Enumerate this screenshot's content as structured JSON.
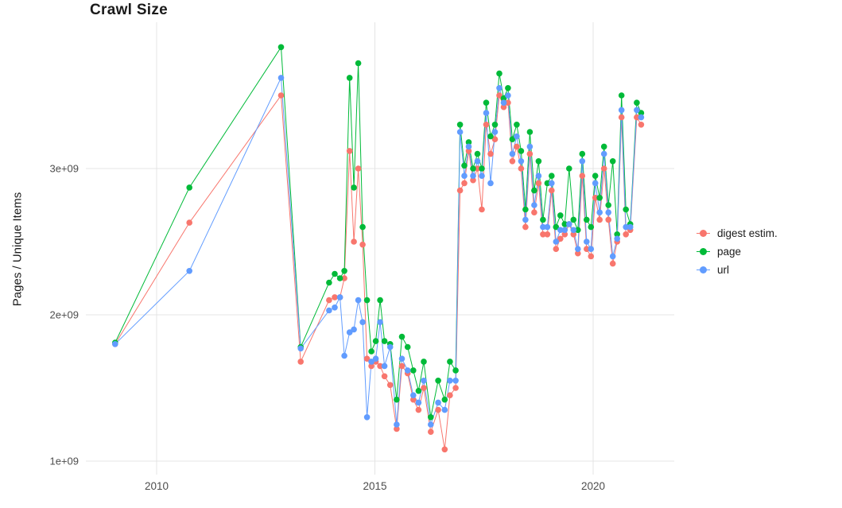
{
  "chart": {
    "title": "Crawl Size",
    "ylabel": "Pages / Unique Items"
  },
  "chart_data": {
    "type": "line",
    "title": "Crawl Size",
    "xlabel": "",
    "ylabel": "Pages / Unique Items",
    "grid": true,
    "legend_position": "right",
    "x_unit": "year (decimal)",
    "y_unit": "count (values in billions, displayed as e+09)",
    "xlim": [
      2008.4,
      2021.8
    ],
    "ylim_billions": [
      0.95,
      4.0
    ],
    "x_ticks": [
      {
        "value": 2010,
        "label": "2010"
      },
      {
        "value": 2015,
        "label": "2015"
      },
      {
        "value": 2020,
        "label": "2020"
      }
    ],
    "y_ticks": [
      {
        "value": 1,
        "label": "1e+09"
      },
      {
        "value": 2,
        "label": "2e+09"
      },
      {
        "value": 3,
        "label": "3e+09"
      }
    ],
    "x": [
      2009.05,
      2010.75,
      2012.85,
      2013.3,
      2013.95,
      2014.08,
      2014.2,
      2014.3,
      2014.42,
      2014.52,
      2014.62,
      2014.72,
      2014.82,
      2014.92,
      2015.02,
      2015.12,
      2015.22,
      2015.35,
      2015.5,
      2015.62,
      2015.75,
      2015.88,
      2016.0,
      2016.12,
      2016.28,
      2016.45,
      2016.6,
      2016.72,
      2016.85,
      2016.95,
      2017.05,
      2017.15,
      2017.25,
      2017.35,
      2017.45,
      2017.55,
      2017.65,
      2017.75,
      2017.85,
      2017.95,
      2018.05,
      2018.15,
      2018.25,
      2018.35,
      2018.45,
      2018.55,
      2018.65,
      2018.75,
      2018.85,
      2018.95,
      2019.05,
      2019.15,
      2019.25,
      2019.35,
      2019.45,
      2019.55,
      2019.65,
      2019.75,
      2019.85,
      2019.95,
      2020.05,
      2020.15,
      2020.25,
      2020.35,
      2020.45,
      2020.55,
      2020.65,
      2020.75,
      2020.85,
      2021.0,
      2021.1
    ],
    "series": [
      {
        "name": "digest estim.",
        "color": "#F8766D",
        "values_billions": [
          1.8,
          2.63,
          3.5,
          1.68,
          2.1,
          2.12,
          2.12,
          2.25,
          3.12,
          2.5,
          3.0,
          2.48,
          1.7,
          1.65,
          1.68,
          1.65,
          1.58,
          1.52,
          1.22,
          1.65,
          1.6,
          1.42,
          1.35,
          1.5,
          1.2,
          1.35,
          1.08,
          1.45,
          1.5,
          2.85,
          2.9,
          3.12,
          2.92,
          3.0,
          2.72,
          3.3,
          3.1,
          3.2,
          3.5,
          3.42,
          3.45,
          3.05,
          3.15,
          3.0,
          2.6,
          3.1,
          2.7,
          2.9,
          2.55,
          2.55,
          2.85,
          2.45,
          2.52,
          2.55,
          2.62,
          2.55,
          2.42,
          2.95,
          2.45,
          2.4,
          2.8,
          2.65,
          3.0,
          2.65,
          2.35,
          2.5,
          3.35,
          2.55,
          2.58,
          3.35,
          3.3
        ]
      },
      {
        "name": "page",
        "color": "#00BA38",
        "values_billions": [
          1.81,
          2.87,
          3.83,
          1.78,
          2.22,
          2.28,
          2.25,
          2.3,
          3.62,
          2.87,
          3.72,
          2.6,
          2.1,
          1.75,
          1.82,
          2.1,
          1.82,
          1.8,
          1.42,
          1.85,
          1.78,
          1.62,
          1.48,
          1.68,
          1.3,
          1.55,
          1.42,
          1.68,
          1.62,
          3.3,
          3.02,
          3.18,
          3.0,
          3.1,
          3.0,
          3.45,
          3.22,
          3.3,
          3.65,
          3.48,
          3.55,
          3.2,
          3.3,
          3.12,
          2.72,
          3.25,
          2.85,
          3.05,
          2.65,
          2.9,
          2.95,
          2.6,
          2.68,
          2.62,
          3.0,
          2.65,
          2.58,
          3.1,
          2.65,
          2.6,
          2.95,
          2.8,
          3.15,
          2.75,
          3.05,
          2.55,
          3.5,
          2.72,
          2.62,
          3.45,
          3.38
        ]
      },
      {
        "name": "url",
        "color": "#619CFF",
        "values_billions": [
          1.8,
          2.3,
          3.62,
          1.77,
          2.03,
          2.05,
          2.12,
          1.72,
          1.88,
          1.9,
          2.1,
          1.95,
          1.3,
          1.68,
          1.7,
          1.95,
          1.65,
          1.78,
          1.25,
          1.7,
          1.62,
          1.45,
          1.4,
          1.55,
          1.25,
          1.4,
          1.35,
          1.55,
          1.55,
          3.25,
          2.95,
          3.15,
          2.95,
          3.05,
          2.95,
          3.38,
          2.9,
          3.25,
          3.55,
          3.45,
          3.5,
          3.1,
          3.22,
          3.05,
          2.65,
          3.15,
          2.75,
          2.95,
          2.6,
          2.6,
          2.9,
          2.5,
          2.58,
          2.58,
          2.62,
          2.58,
          2.45,
          3.05,
          2.5,
          2.45,
          2.9,
          2.7,
          3.1,
          2.7,
          2.4,
          2.52,
          3.4,
          2.6,
          2.6,
          3.4,
          3.35
        ]
      }
    ],
    "style": {
      "grid_color": "#e4e4e4",
      "tick_label_color": "#4d4d4d",
      "point_radius_px": 3.8
    }
  }
}
